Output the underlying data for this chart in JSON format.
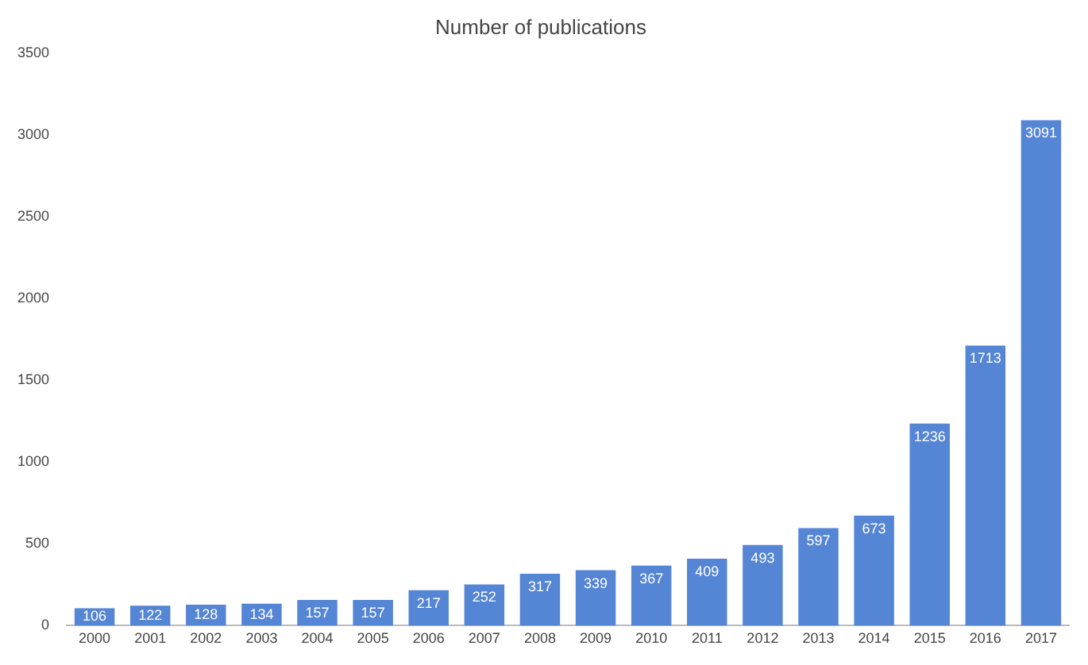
{
  "chart_data": {
    "type": "bar",
    "title": "Number of publications",
    "categories": [
      "2000",
      "2001",
      "2002",
      "2003",
      "2004",
      "2005",
      "2006",
      "2007",
      "2008",
      "2009",
      "2010",
      "2011",
      "2012",
      "2013",
      "2014",
      "2015",
      "2016",
      "2017"
    ],
    "values": [
      106,
      122,
      128,
      134,
      157,
      157,
      217,
      252,
      317,
      339,
      367,
      409,
      493,
      597,
      673,
      1236,
      1713,
      3091
    ],
    "color": "#5585d5",
    "ylim": [
      0,
      3500
    ],
    "yticks": [
      0,
      500,
      1000,
      1500,
      2000,
      2500,
      3000,
      3500
    ],
    "data_labels": true
  }
}
